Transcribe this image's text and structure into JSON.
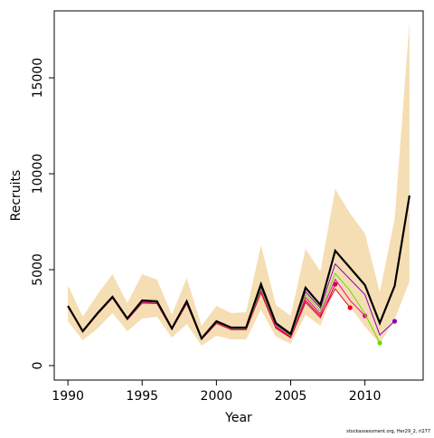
{
  "chart_data": {
    "type": "line",
    "x_label": "Year",
    "y_label": "Recruits",
    "note": "stockassessment.org, Her29_2, rl277",
    "x": [
      1990,
      1991,
      1992,
      1993,
      1994,
      1995,
      1996,
      1997,
      1998,
      1999,
      2000,
      2001,
      2002,
      2003,
      2004,
      2005,
      2006,
      2007,
      2008,
      2009,
      2010,
      2011,
      2012,
      2013
    ],
    "xlim": [
      1989.08,
      2013.92
    ],
    "xticks": [
      1990,
      1995,
      2000,
      2005,
      2010
    ],
    "ylim": [
      -755,
      18491
    ],
    "yticks": [
      0,
      5000,
      10000,
      15000
    ],
    "band": {
      "color": "#f5deb3",
      "upper": [
        4198,
        2547,
        3726,
        4764,
        3255,
        4764,
        4481,
        2641,
        4575,
        2075,
        3113,
        2736,
        2783,
        6274,
        3160,
        2594,
        6085,
        4906,
        9198,
        7925,
        6887,
        3821,
        7642,
        17925
      ],
      "lower": [
        2311,
        1321,
        1934,
        2736,
        1792,
        2453,
        2547,
        1462,
        2170,
        1038,
        1557,
        1368,
        1368,
        2925,
        1509,
        1132,
        2641,
        2075,
        4057,
        3066,
        2028,
        1132,
        2406,
        4387
      ]
    },
    "series": [
      {
        "color": "#000000",
        "values": [
          3113,
          1792,
          2736,
          3585,
          2453,
          3396,
          3349,
          1934,
          3349,
          1415,
          2311,
          1981,
          1981,
          4245,
          2217,
          1651,
          4057,
          3160,
          5990,
          5094,
          4198,
          2217,
          4151,
          8868
        ]
      },
      {
        "color": "#8b00b8",
        "values": [
          3100,
          1780,
          2720,
          3560,
          2430,
          3350,
          3320,
          1920,
          3300,
          1400,
          2280,
          1950,
          1950,
          4100,
          2150,
          1600,
          3850,
          3000,
          5300,
          4500,
          3700,
          1600,
          2311,
          null
        ]
      },
      {
        "color": "#66dd00",
        "values": [
          3090,
          1775,
          2710,
          3550,
          2420,
          3330,
          3300,
          1910,
          3280,
          1395,
          2260,
          1930,
          1930,
          4000,
          2100,
          1560,
          3700,
          2850,
          4800,
          3900,
          2700,
          1179,
          null,
          null
        ]
      },
      {
        "color": "#ee00aa",
        "values": [
          3080,
          1770,
          2700,
          3540,
          2410,
          3300,
          3280,
          1900,
          3260,
          1390,
          2240,
          1910,
          1910,
          3950,
          2050,
          1520,
          3550,
          2700,
          4500,
          3400,
          2594,
          null,
          null,
          null
        ]
      },
      {
        "color": "#ee0022",
        "values": [
          3070,
          1760,
          2690,
          3530,
          2400,
          3280,
          3250,
          1890,
          3240,
          1380,
          2220,
          1890,
          1890,
          3850,
          2000,
          1480,
          3400,
          2600,
          4000,
          3019,
          null,
          null,
          null,
          null
        ]
      },
      {
        "color": "#cc0055",
        "values": [
          3060,
          1750,
          2680,
          3520,
          2390,
          3260,
          3230,
          1880,
          3220,
          1370,
          2200,
          1870,
          1870,
          3800,
          1950,
          1450,
          3300,
          2500,
          4245,
          null,
          null,
          null,
          null,
          null
        ]
      }
    ]
  }
}
